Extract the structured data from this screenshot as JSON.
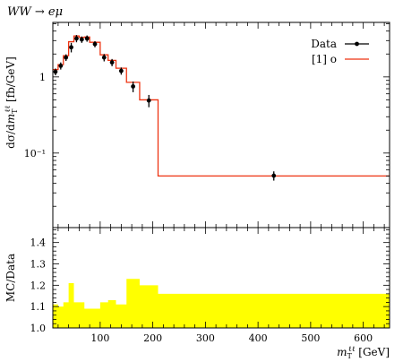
{
  "title": "WW → eμ",
  "chart_data": [
    {
      "type": "line",
      "panel": "main",
      "ylabel": "dσ/dm_T^{ℓℓ} [fb/GeV]",
      "yscale": "log",
      "ylim": [
        0.0105,
        5.2
      ],
      "xlim": [
        10,
        650
      ],
      "y_ticks": [
        {
          "value": 1,
          "label": "1"
        },
        {
          "value": 0.1,
          "label": "10⁻¹"
        }
      ],
      "legend_placement": "top-right",
      "legend": [
        {
          "label": "Data",
          "marker": "point-with-errorbar",
          "color": "#000000"
        },
        {
          "label": "[1] o",
          "marker": "line",
          "color": "#ee3311"
        }
      ],
      "series": [
        {
          "name": "Data",
          "kind": "points",
          "color": "#000000",
          "points": [
            {
              "x": 15,
              "y": 1.17,
              "err": 0.12
            },
            {
              "x": 25,
              "y": 1.4,
              "err": 0.15
            },
            {
              "x": 35,
              "y": 1.8,
              "err": 0.18
            },
            {
              "x": 45,
              "y": 2.45,
              "err": 0.35
            },
            {
              "x": 55,
              "y": 3.2,
              "err": 0.35
            },
            {
              "x": 65,
              "y": 3.1,
              "err": 0.3
            },
            {
              "x": 75,
              "y": 3.2,
              "err": 0.3
            },
            {
              "x": 90,
              "y": 2.7,
              "err": 0.25
            },
            {
              "x": 107.5,
              "y": 1.8,
              "err": 0.2
            },
            {
              "x": 122.5,
              "y": 1.55,
              "err": 0.17
            },
            {
              "x": 140,
              "y": 1.2,
              "err": 0.13
            },
            {
              "x": 162.5,
              "y": 0.75,
              "err": 0.12
            },
            {
              "x": 192.5,
              "y": 0.49,
              "err": 0.09
            },
            {
              "x": 430,
              "y": 0.0505,
              "err": 0.007
            }
          ]
        },
        {
          "name": "[1] o",
          "kind": "histogram",
          "color": "#ee3311",
          "bins": [
            {
              "lo": 10,
              "hi": 20,
              "y": 1.25
            },
            {
              "lo": 20,
              "hi": 30,
              "y": 1.45
            },
            {
              "lo": 30,
              "hi": 40,
              "y": 1.9
            },
            {
              "lo": 40,
              "hi": 50,
              "y": 2.9
            },
            {
              "lo": 50,
              "hi": 60,
              "y": 3.45
            },
            {
              "lo": 60,
              "hi": 70,
              "y": 3.3
            },
            {
              "lo": 70,
              "hi": 80,
              "y": 3.35
            },
            {
              "lo": 80,
              "hi": 100,
              "y": 2.85
            },
            {
              "lo": 100,
              "hi": 115,
              "y": 1.95
            },
            {
              "lo": 115,
              "hi": 130,
              "y": 1.65
            },
            {
              "lo": 130,
              "hi": 150,
              "y": 1.3
            },
            {
              "lo": 150,
              "hi": 175,
              "y": 0.85
            },
            {
              "lo": 175,
              "hi": 210,
              "y": 0.5
            },
            {
              "lo": 210,
              "hi": 650,
              "y": 0.05
            }
          ]
        }
      ]
    },
    {
      "type": "area",
      "panel": "ratio",
      "ylabel": "MC/Data",
      "xlabel": "m_T^{ℓℓ} [GeV]",
      "ylim": [
        1.0,
        1.47
      ],
      "xlim": [
        10,
        650
      ],
      "y_ticks": [
        1.0,
        1.1,
        1.2,
        1.3,
        1.4
      ],
      "x_ticks": [
        100,
        200,
        300,
        400,
        500,
        600
      ],
      "fill_color": "#ffff00",
      "bins": [
        {
          "lo": 10,
          "hi": 20,
          "y": 1.11
        },
        {
          "lo": 20,
          "hi": 30,
          "y": 1.1
        },
        {
          "lo": 30,
          "hi": 40,
          "y": 1.12
        },
        {
          "lo": 40,
          "hi": 50,
          "y": 1.21
        },
        {
          "lo": 50,
          "hi": 60,
          "y": 1.12
        },
        {
          "lo": 60,
          "hi": 70,
          "y": 1.12
        },
        {
          "lo": 70,
          "hi": 80,
          "y": 1.09
        },
        {
          "lo": 80,
          "hi": 100,
          "y": 1.09
        },
        {
          "lo": 100,
          "hi": 115,
          "y": 1.12
        },
        {
          "lo": 115,
          "hi": 130,
          "y": 1.13
        },
        {
          "lo": 130,
          "hi": 150,
          "y": 1.11
        },
        {
          "lo": 150,
          "hi": 175,
          "y": 1.23
        },
        {
          "lo": 175,
          "hi": 210,
          "y": 1.2
        },
        {
          "lo": 210,
          "hi": 650,
          "y": 1.16
        }
      ]
    }
  ]
}
